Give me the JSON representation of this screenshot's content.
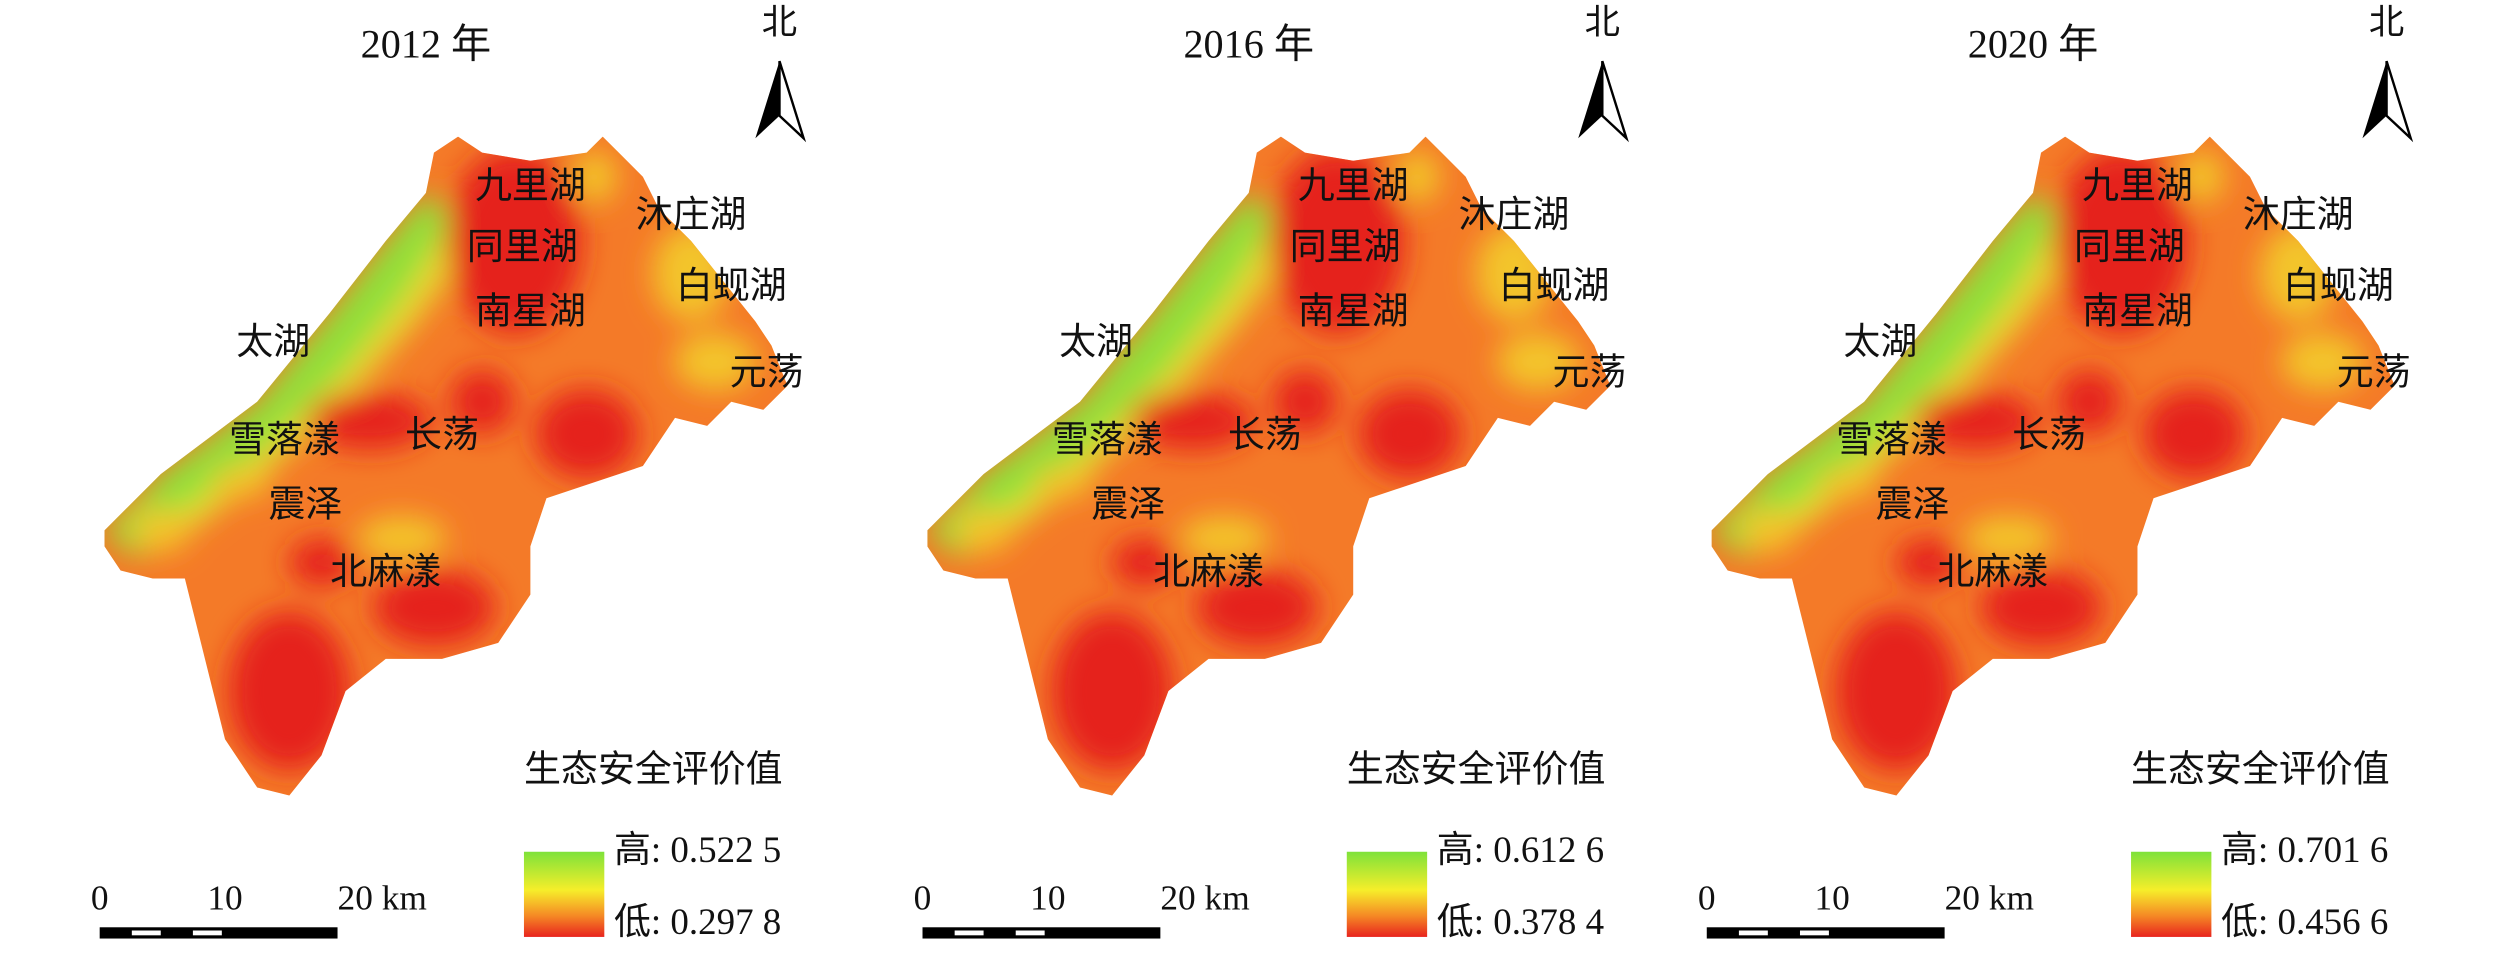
{
  "panels": [
    {
      "title": "2012 年",
      "north": "北",
      "lakes": [
        "九里湖",
        "同里湖",
        "南星湖",
        "沐庄湖",
        "白蚬湖",
        "元荡",
        "太湖",
        "雪落漾",
        "长荡",
        "震泽",
        "北麻漾"
      ],
      "legend": {
        "title": "生态安全评价值",
        "high": "高: 0.522 5",
        "low": "低: 0.297 8"
      },
      "scale_bar": {
        "ticks": [
          "0",
          "10",
          "20 km"
        ]
      }
    },
    {
      "title": "2016 年",
      "north": "北",
      "lakes": [
        "九里湖",
        "同里湖",
        "南星湖",
        "沐庄湖",
        "白蚬湖",
        "元荡",
        "太湖",
        "雪落漾",
        "长荡",
        "震泽",
        "北麻漾"
      ],
      "legend": {
        "title": "生态安全评价值",
        "high": "高: 0.612 6",
        "low": "低: 0.378 4"
      },
      "scale_bar": {
        "ticks": [
          "0",
          "10",
          "20 km"
        ]
      }
    },
    {
      "title": "2020 年",
      "north": "北",
      "lakes": [
        "九里湖",
        "同里湖",
        "南星湖",
        "沐庄湖",
        "白蚬湖",
        "元荡",
        "太湖",
        "雪落漾",
        "长荡",
        "震泽",
        "北麻漾"
      ],
      "legend": {
        "title": "生态安全评价值",
        "high": "高: 0.701 6",
        "low": "低: 0.456 6"
      },
      "scale_bar": {
        "ticks": [
          "0",
          "10",
          "20 km"
        ]
      }
    }
  ]
}
